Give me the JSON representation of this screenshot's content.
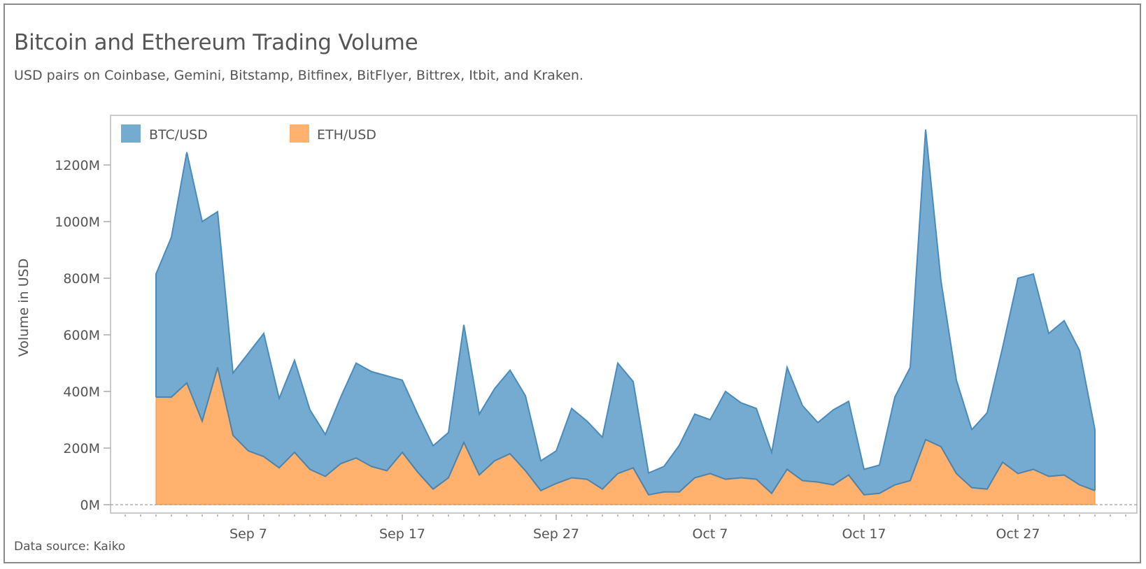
{
  "title": "Bitcoin and Ethereum Trading Volume",
  "subtitle": "USD pairs on Coinbase, Gemini, Bitstamp, Bitfinex, BitFlyer, Bittrex, Itbit, and Kraken.",
  "source": "Data source: Kaiko",
  "colors": {
    "btc": "#75abd0",
    "btc_line": "#4a8bbd",
    "eth": "#ffb16d",
    "eth_line": "#f4913f"
  },
  "chart_data": {
    "type": "area",
    "stacked": true,
    "title": "Bitcoin and Ethereum Trading Volume",
    "ylabel": "Volume in USD",
    "xlabel": "",
    "ylim": [
      0,
      1300
    ],
    "y_ticks": [
      "0M",
      "200M",
      "400M",
      "600M",
      "800M",
      "1000M",
      "1200M"
    ],
    "y_tick_values": [
      0,
      200,
      400,
      600,
      800,
      1000,
      1200
    ],
    "x_start": "Sep 1",
    "x_ticks": [
      "Sep 7",
      "Sep 17",
      "Sep 27",
      "Oct 7",
      "Oct 17",
      "Oct 27"
    ],
    "x_tick_day_index": [
      6,
      16,
      26,
      36,
      46,
      56
    ],
    "legend": [
      "BTC/USD",
      "ETH/USD"
    ],
    "legend_position": "top-left",
    "units": "M USD",
    "series": [
      {
        "name": "ETH/USD",
        "values": [
          380,
          380,
          430,
          295,
          485,
          245,
          190,
          170,
          130,
          185,
          125,
          100,
          145,
          165,
          135,
          120,
          185,
          115,
          55,
          95,
          220,
          105,
          155,
          180,
          120,
          50,
          75,
          95,
          90,
          55,
          110,
          130,
          35,
          45,
          45,
          95,
          110,
          90,
          95,
          90,
          40,
          125,
          85,
          80,
          70,
          105,
          35,
          40,
          70,
          85,
          230,
          205,
          110,
          60,
          55,
          150,
          110,
          125,
          100,
          105,
          70,
          50
        ]
      },
      {
        "name": "BTC/USD",
        "total_values": [
          815,
          945,
          1245,
          1000,
          1035,
          465,
          535,
          605,
          375,
          510,
          335,
          248,
          380,
          500,
          470,
          455,
          440,
          320,
          208,
          255,
          635,
          320,
          410,
          475,
          385,
          155,
          190,
          340,
          295,
          238,
          500,
          435,
          112,
          135,
          210,
          320,
          300,
          400,
          360,
          340,
          185,
          485,
          350,
          290,
          335,
          365,
          125,
          140,
          380,
          485,
          1325,
          790,
          440,
          265,
          325,
          555,
          800,
          815,
          605,
          650,
          545,
          265
        ]
      }
    ]
  }
}
